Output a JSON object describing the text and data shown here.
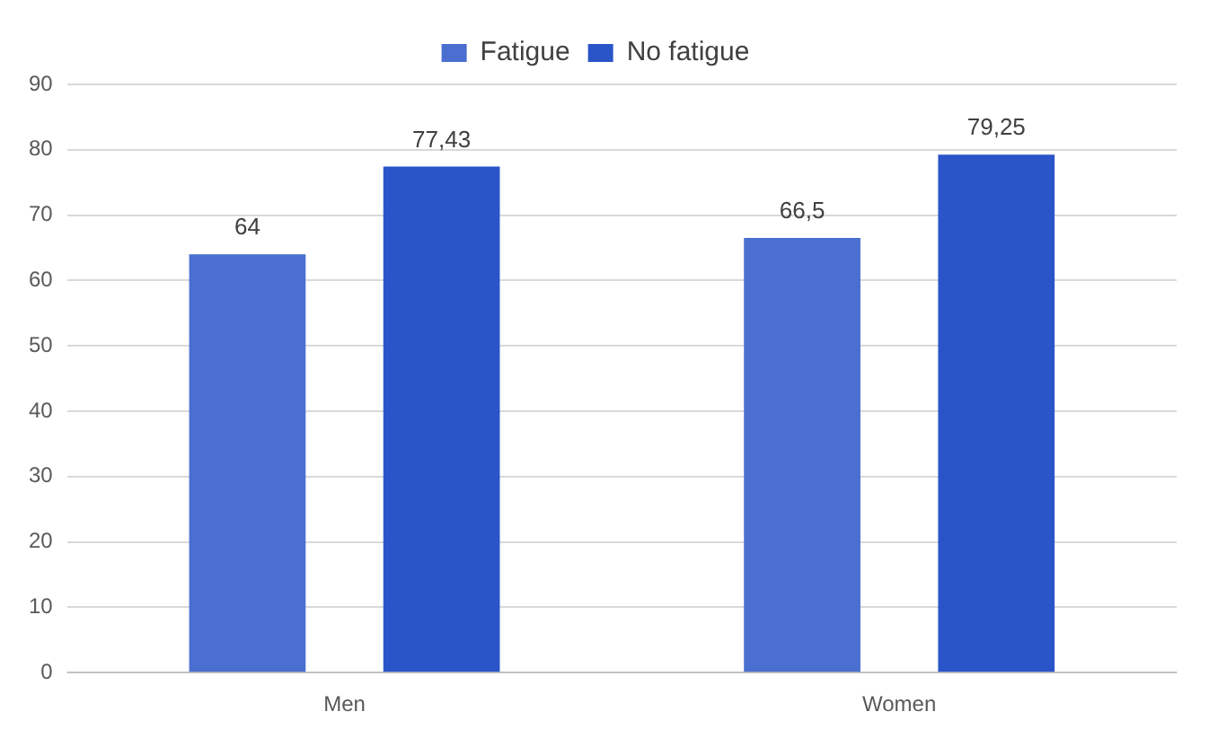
{
  "chart_data": {
    "type": "bar",
    "categories": [
      "Men",
      "Women"
    ],
    "series": [
      {
        "name": "Fatigue",
        "color": "#4a6fd0",
        "values": [
          64,
          66.5
        ],
        "value_labels": [
          "64",
          "66,5"
        ]
      },
      {
        "name": "No fatigue",
        "color": "#2a55c8",
        "values": [
          77.43,
          79.25
        ],
        "value_labels": [
          "77,43",
          "79,25"
        ]
      }
    ],
    "ylim": [
      0,
      90
    ],
    "yticks": [
      0,
      10,
      20,
      30,
      40,
      50,
      60,
      70,
      80,
      90
    ],
    "grid": "y",
    "legend": "top"
  }
}
